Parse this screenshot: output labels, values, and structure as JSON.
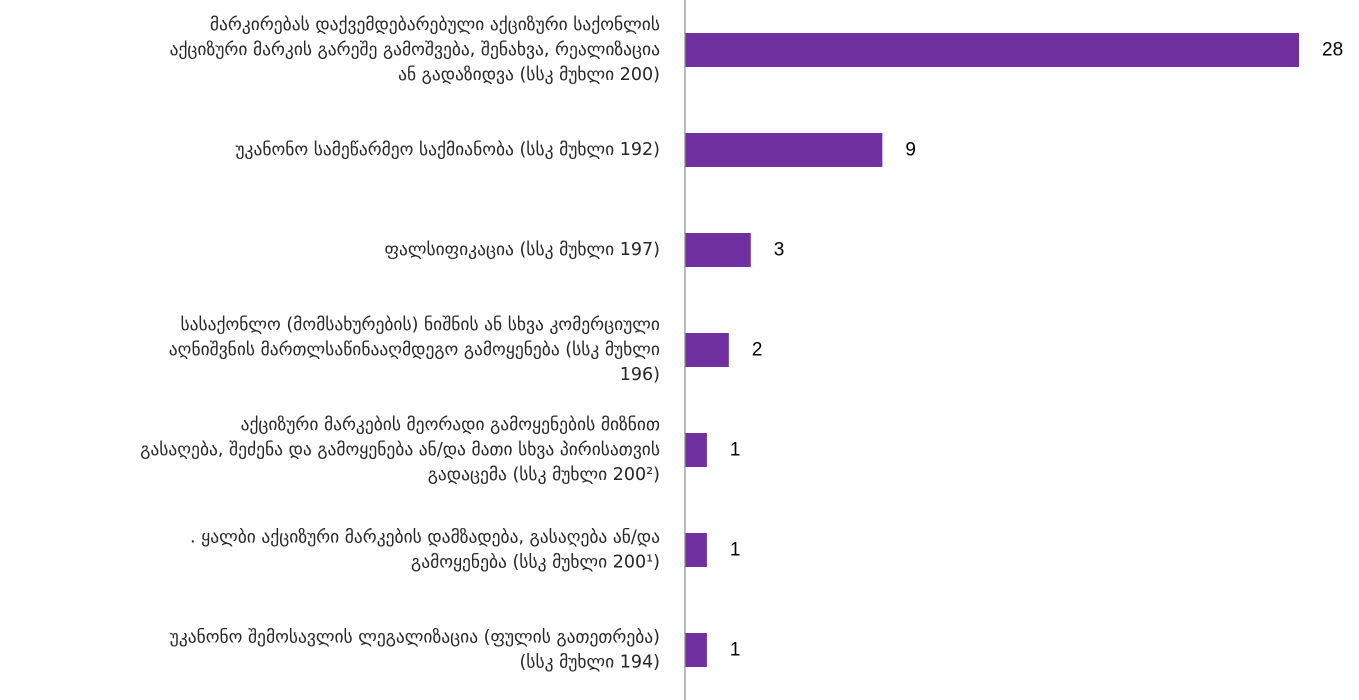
{
  "chart_data": {
    "type": "bar",
    "orientation": "horizontal",
    "title": "",
    "xlabel": "",
    "ylabel": "",
    "grid": false,
    "legend": "none",
    "xlim": [
      0,
      28
    ],
    "bar_color": "#7030A0",
    "axis_color": "#8c8c8c",
    "categories": [
      "მარკირებას დაქვემდებარებული აქციზური საქონლის აქციზური მარკის გარეშე გამოშვება, შენახვა, რეალიზაცია ან გადაზიდვა (სსკ  მუხლი 200)",
      "უკანონო სამეწარმეო საქმიანობა (სსკ  მუხლი 192)",
      "ფალსიფიკაცია (სსკ მუხლი 197)",
      "სასაქონლო (მომსახურების) ნიშნის ან სხვა კომერციული აღნიშვნის მართლსაწინააღმდეგო გამოყენება (სსკ  მუხლი 196)",
      "აქციზური მარკების მეორადი გამოყენების მიზნით გასაღება, შეძენა და გამოყენება ან/და მათი სხვა პირისათვის გადაცემა  (სსკ მუხლი 200²)",
      ". ყალბი აქციზური მარკების დამზადება, გასაღება ან/და გამოყენება (სსკ  მუხლი 200¹)",
      "უკანონო შემოსავლის ლეგალიზაცია (ფულის გათეთრება) (სსკ მუხლი 194)"
    ],
    "category_lines": [
      [
        "მარკირებას დაქვემდებარებული აქციზური საქონლის",
        "აქციზური მარკის გარეშე გამოშვება, შენახვა, რეალიზაცია",
        "ან გადაზიდვა (სსკ  მუხლი 200)"
      ],
      [
        "უკანონო სამეწარმეო საქმიანობა (სსკ  მუხლი 192)"
      ],
      [
        "ფალსიფიკაცია (სსკ მუხლი 197)"
      ],
      [
        "სასაქონლო (მომსახურების) ნიშნის ან სხვა კომერციული",
        "აღნიშვნის მართლსაწინააღმდეგო გამოყენება (სსკ  მუხლი",
        "196)"
      ],
      [
        "აქციზური მარკების მეორადი გამოყენების მიზნით",
        "გასაღება, შეძენა და გამოყენება ან/და მათი სხვა პირისათვის",
        "გადაცემა  (სსკ მუხლი 200²)"
      ],
      [
        ". ყალბი აქციზური მარკების დამზადება, გასაღება ან/და",
        "გამოყენება (სსკ  მუხლი 200¹)"
      ],
      [
        "უკანონო შემოსავლის ლეგალიზაცია (ფულის გათეთრება)",
        "(სსკ მუხლი 194)"
      ]
    ],
    "values": [
      28,
      9,
      3,
      2,
      1,
      1,
      1
    ]
  }
}
